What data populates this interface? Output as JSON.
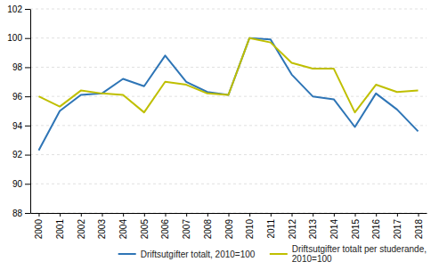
{
  "chart_data": {
    "type": "line",
    "x": [
      2000,
      2001,
      2002,
      2003,
      2004,
      2005,
      2006,
      2007,
      2008,
      2009,
      2010,
      2011,
      2012,
      2013,
      2014,
      2015,
      2016,
      2017,
      2018
    ],
    "xlim": [
      1999.6,
      2018.4
    ],
    "xticks": [
      2000,
      2001,
      2002,
      2003,
      2004,
      2005,
      2006,
      2007,
      2008,
      2009,
      2010,
      2011,
      2012,
      2013,
      2014,
      2015,
      2016,
      2017,
      2018
    ],
    "ylim": [
      88,
      102
    ],
    "yticks": [
      88,
      90,
      92,
      94,
      96,
      98,
      100,
      102
    ],
    "grid": true,
    "legend": "lower right",
    "series": [
      {
        "name": "Driftsutgifter totalt, 2010=100",
        "color": "#2E75B6",
        "values": [
          92.3,
          95.0,
          96.1,
          96.2,
          97.2,
          96.7,
          98.8,
          97.0,
          96.3,
          96.1,
          100.0,
          99.9,
          97.5,
          96.0,
          95.8,
          93.9,
          96.2,
          95.1,
          93.6
        ]
      },
      {
        "name": "Driftsutgifter totalt per studerande,\n2010=100",
        "color": "#BFBF00",
        "values": [
          96.0,
          95.3,
          96.4,
          96.2,
          96.1,
          94.9,
          97.0,
          96.8,
          96.2,
          96.1,
          100.0,
          99.7,
          98.3,
          97.9,
          97.9,
          94.9,
          96.8,
          96.3,
          96.4
        ]
      }
    ]
  }
}
